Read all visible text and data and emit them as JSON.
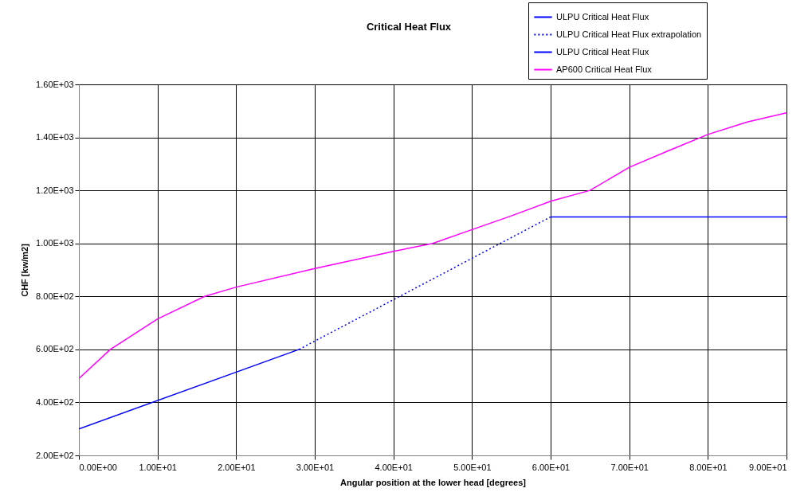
{
  "chart_data": {
    "type": "line",
    "title": "Critical Heat Flux",
    "xlabel": "Angular position at the lower head [degrees]",
    "ylabel": "CHF [kw/m2]",
    "xlim": [
      0,
      90
    ],
    "ylim": [
      200,
      1600
    ],
    "xticks": [
      {
        "value": 0,
        "label": "0.00E+00"
      },
      {
        "value": 10,
        "label": "1.00E+01"
      },
      {
        "value": 20,
        "label": "2.00E+01"
      },
      {
        "value": 30,
        "label": "3.00E+01"
      },
      {
        "value": 40,
        "label": "4.00E+01"
      },
      {
        "value": 50,
        "label": "5.00E+01"
      },
      {
        "value": 60,
        "label": "6.00E+01"
      },
      {
        "value": 70,
        "label": "7.00E+01"
      },
      {
        "value": 80,
        "label": "8.00E+01"
      },
      {
        "value": 90,
        "label": "9.00E+01"
      }
    ],
    "yticks": [
      {
        "value": 200,
        "label": "2.00E+02"
      },
      {
        "value": 400,
        "label": "4.00E+02"
      },
      {
        "value": 600,
        "label": "6.00E+02"
      },
      {
        "value": 800,
        "label": "8.00E+02"
      },
      {
        "value": 1000,
        "label": "1.00E+03"
      },
      {
        "value": 1200,
        "label": "1.20E+03"
      },
      {
        "value": 1400,
        "label": "1.40E+03"
      },
      {
        "value": 1600,
        "label": "1.60E+03"
      }
    ],
    "grid": true,
    "legend": "top right",
    "marker": "none",
    "series": [
      {
        "name": "ULPU Critical Heat Flux",
        "color": "#0000ff",
        "line_style": "solid",
        "x": [
          0,
          28
        ],
        "values": [
          300,
          600
        ]
      },
      {
        "name": "ULPU Critical Heat Flux extrapolation",
        "color": "#0000ff",
        "line_style": "dotted",
        "x": [
          28,
          60
        ],
        "values": [
          600,
          1100
        ]
      },
      {
        "name": "ULPU Critical Heat Flux",
        "color": "#0000ff",
        "line_style": "solid",
        "x": [
          60,
          90
        ],
        "values": [
          1100,
          1100
        ]
      },
      {
        "name": "AP600 Critical Heat Flux",
        "color": "#ff00ff",
        "line_style": "solid",
        "x": [
          0,
          4,
          10,
          16,
          20,
          30,
          40,
          45,
          50,
          55,
          60,
          65,
          70,
          75,
          80,
          85,
          90
        ],
        "values": [
          490,
          600,
          715,
          800,
          835,
          905,
          970,
          1000,
          1052,
          1104,
          1159,
          1200,
          1287,
          1350,
          1411,
          1458,
          1493
        ]
      }
    ]
  }
}
